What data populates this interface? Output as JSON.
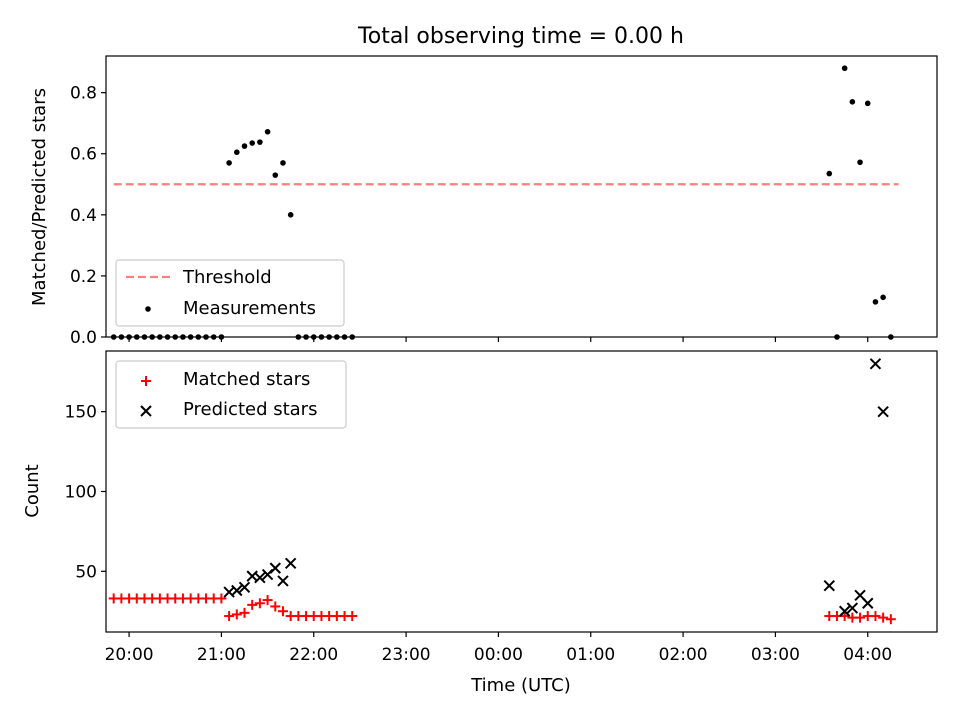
{
  "chart_data": [
    {
      "type": "scatter",
      "title": "Total observing time = 0.00 h",
      "xlabel": "",
      "ylabel": "Matched/Predicted stars",
      "xlim": [
        "19:45",
        "04:45"
      ],
      "ylim": [
        0,
        0.92
      ],
      "yticks": [
        0.0,
        0.2,
        0.4,
        0.6,
        0.8
      ],
      "grid": false,
      "legend_position": "lower-left",
      "series": [
        {
          "name": "Threshold",
          "type": "line",
          "style": "dashed",
          "color": "#ff7f7f",
          "x": [
            "19:50",
            "04:20"
          ],
          "y": [
            0.5,
            0.5
          ]
        },
        {
          "name": "Measurements",
          "type": "scatter",
          "marker": "dot",
          "color": "#000000",
          "x": [
            "19:50",
            "19:55",
            "20:00",
            "20:05",
            "20:10",
            "20:15",
            "20:20",
            "20:25",
            "20:30",
            "20:35",
            "20:40",
            "20:45",
            "20:50",
            "20:55",
            "21:00",
            "21:05",
            "21:10",
            "21:15",
            "21:20",
            "21:25",
            "21:30",
            "21:35",
            "21:40",
            "21:45",
            "21:50",
            "21:55",
            "22:00",
            "22:05",
            "22:10",
            "22:15",
            "22:20",
            "22:25",
            "03:35",
            "03:40",
            "03:45",
            "03:50",
            "03:55",
            "04:00",
            "04:05",
            "04:10",
            "04:15"
          ],
          "y": [
            0,
            0,
            0,
            0,
            0,
            0,
            0,
            0,
            0,
            0,
            0,
            0,
            0,
            0,
            0,
            0.57,
            0.605,
            0.625,
            0.635,
            0.638,
            0.672,
            0.53,
            0.57,
            0.4,
            0,
            0,
            0,
            0,
            0,
            0,
            0,
            0,
            0.535,
            0,
            0.88,
            0.77,
            0.572,
            0.765,
            0.115,
            0.13,
            0
          ]
        }
      ]
    },
    {
      "type": "scatter",
      "title": "",
      "xlabel": "Time (UTC)",
      "ylabel": "Count",
      "xlim": [
        "19:45",
        "04:45"
      ],
      "ylim": [
        12,
        188
      ],
      "yticks": [
        50,
        100,
        150
      ],
      "xticks": [
        "20:00",
        "21:00",
        "22:00",
        "23:00",
        "00:00",
        "01:00",
        "02:00",
        "03:00",
        "04:00"
      ],
      "grid": false,
      "legend_position": "upper-left",
      "series": [
        {
          "name": "Matched stars",
          "marker": "plus",
          "color": "#ff0000",
          "x": [
            "19:50",
            "19:55",
            "20:00",
            "20:05",
            "20:10",
            "20:15",
            "20:20",
            "20:25",
            "20:30",
            "20:35",
            "20:40",
            "20:45",
            "20:50",
            "20:55",
            "21:00",
            "21:05",
            "21:10",
            "21:15",
            "21:20",
            "21:25",
            "21:30",
            "21:35",
            "21:40",
            "21:45",
            "21:50",
            "21:55",
            "22:00",
            "22:05",
            "22:10",
            "22:15",
            "22:20",
            "22:25",
            "03:35",
            "03:40",
            "03:45",
            "03:50",
            "03:55",
            "04:00",
            "04:05",
            "04:10",
            "04:15"
          ],
          "y": [
            33,
            33,
            33,
            33,
            33,
            33,
            33,
            33,
            33,
            33,
            33,
            33,
            33,
            33,
            33,
            22,
            23,
            24,
            29,
            30,
            32,
            28,
            25,
            22,
            22,
            22,
            22,
            22,
            22,
            22,
            22,
            22,
            22,
            22,
            22,
            21,
            21,
            22,
            22,
            21,
            20
          ]
        },
        {
          "name": "Predicted stars",
          "marker": "x",
          "color": "#000000",
          "x": [
            "21:05",
            "21:10",
            "21:15",
            "21:20",
            "21:25",
            "21:30",
            "21:35",
            "21:40",
            "21:45",
            "03:35",
            "03:45",
            "03:50",
            "03:55",
            "04:00",
            "04:05",
            "04:10"
          ],
          "y": [
            37,
            38,
            40,
            47,
            46,
            48,
            52,
            44,
            55,
            41,
            25,
            27,
            35,
            30,
            180,
            150
          ]
        }
      ]
    }
  ]
}
